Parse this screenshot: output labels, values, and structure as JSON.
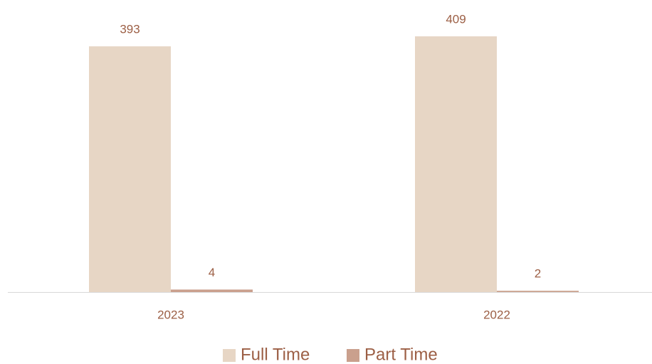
{
  "chart_data": {
    "type": "bar",
    "categories": [
      "2023",
      "2022"
    ],
    "series": [
      {
        "name": "Full Time",
        "color": "#e7d6c5",
        "values": [
          393,
          409
        ]
      },
      {
        "name": "Part Time",
        "color": "#caa08d",
        "values": [
          4,
          2
        ]
      }
    ],
    "legend": "bottom"
  }
}
